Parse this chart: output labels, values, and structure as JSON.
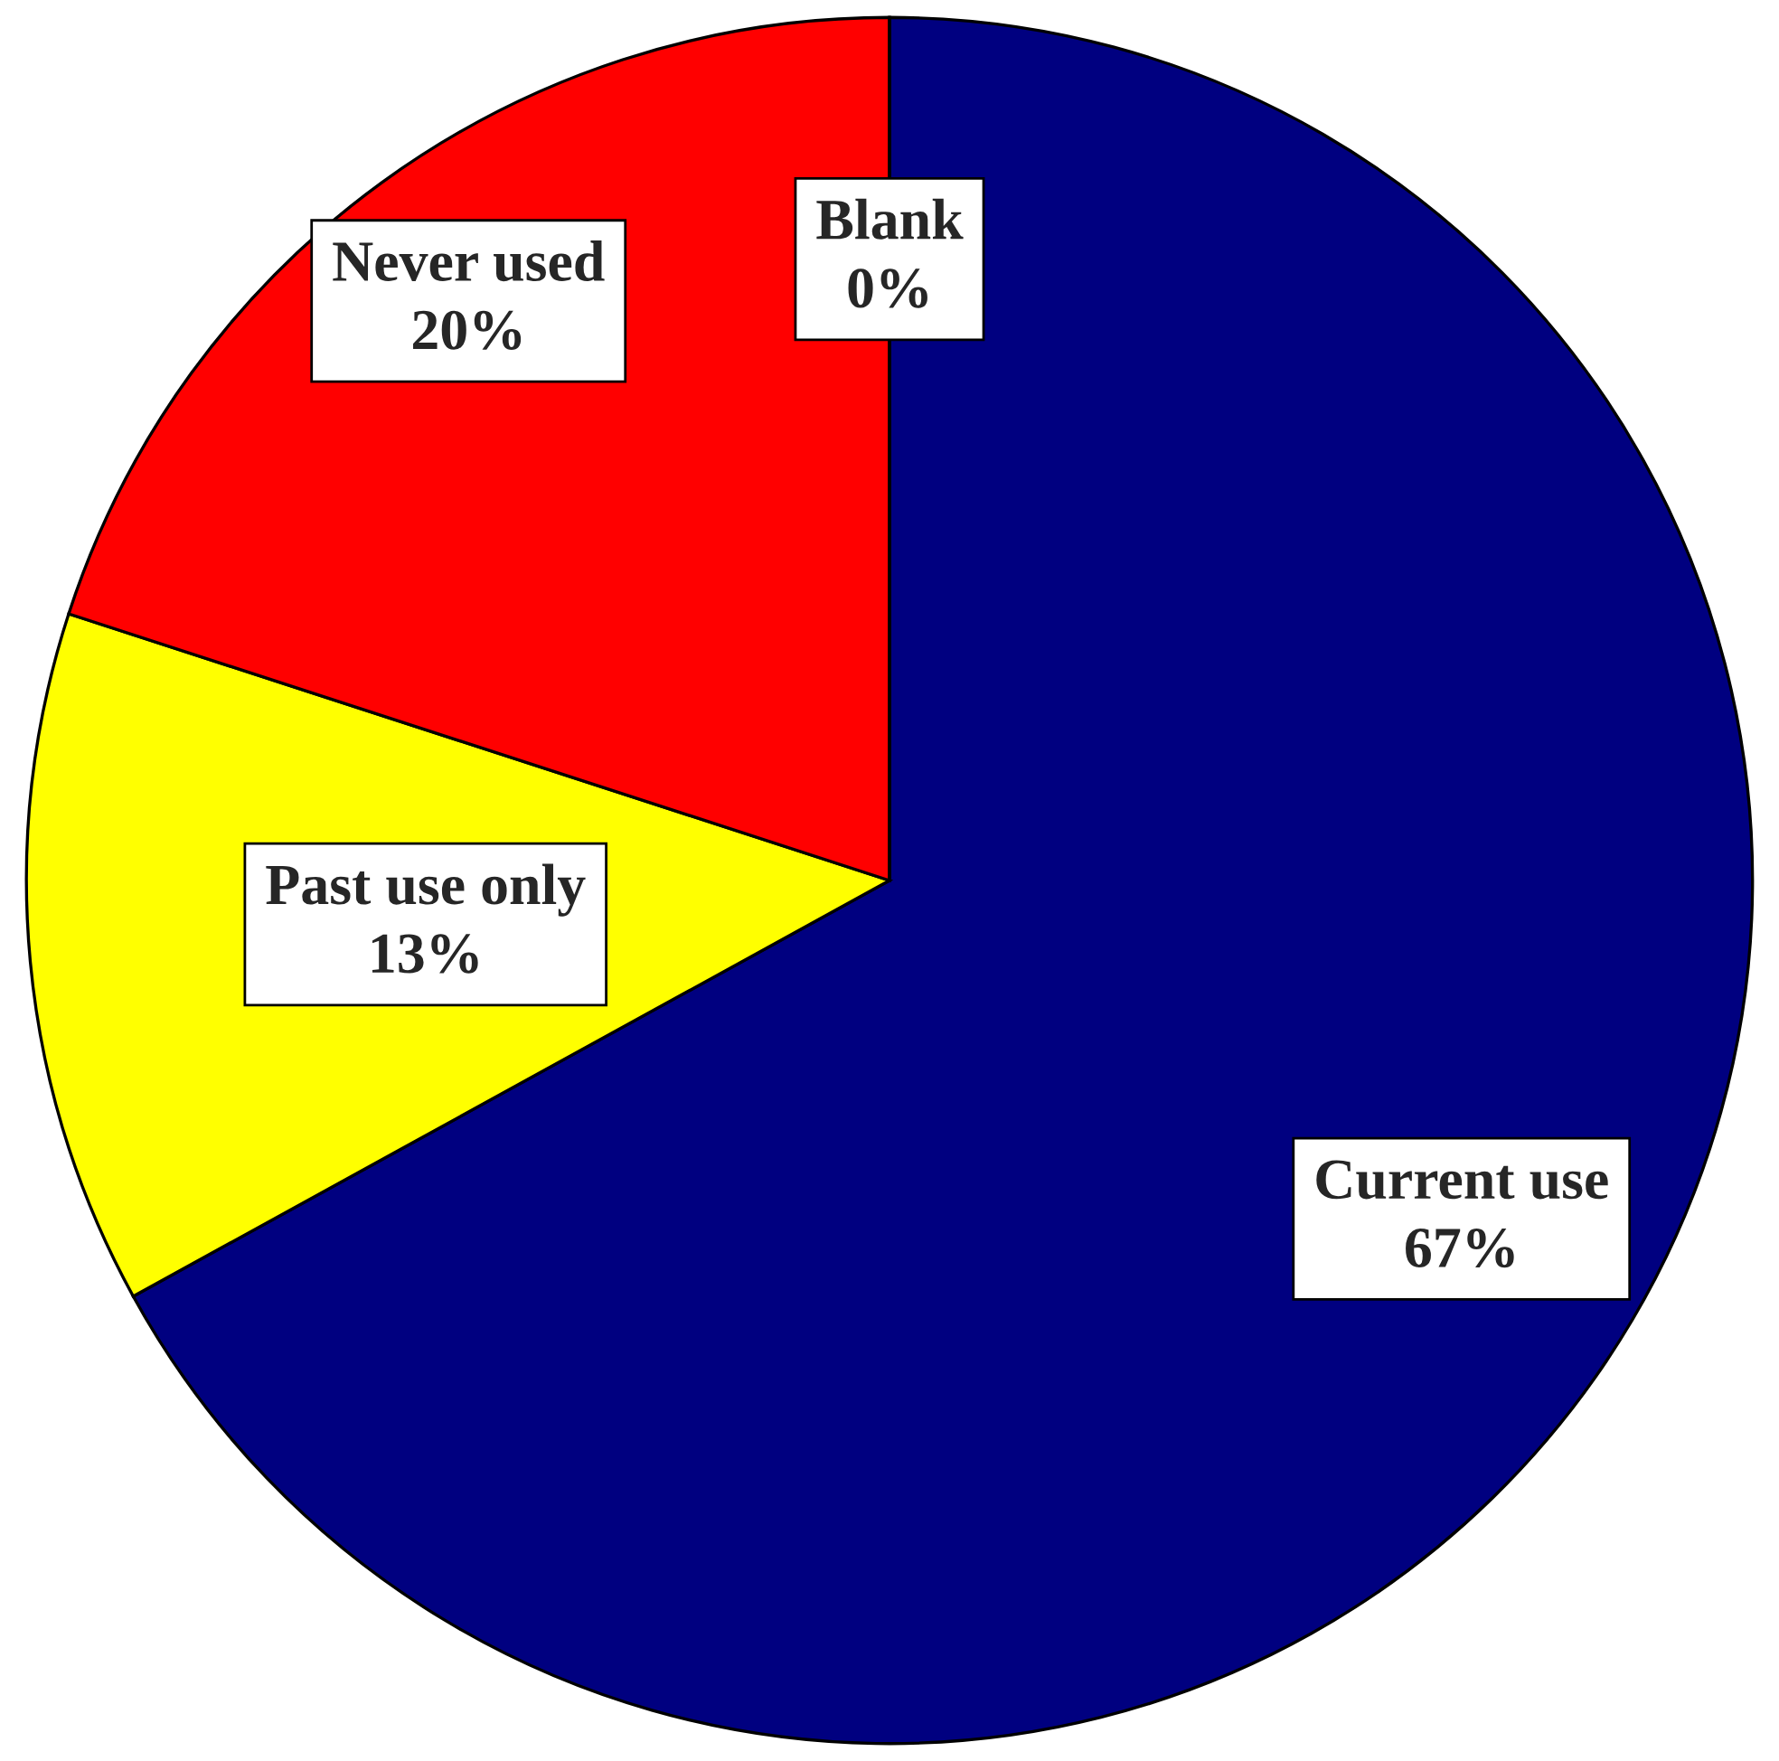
{
  "chart_data": {
    "type": "pie",
    "categories": [
      "Current use",
      "Past use only",
      "Never used",
      "Blank"
    ],
    "values": [
      67,
      13,
      20,
      0
    ],
    "colors": [
      "#000080",
      "#ffff00",
      "#ff0000",
      "#cc8800"
    ],
    "value_labels": [
      "67%",
      "13%",
      "20%",
      "0%"
    ]
  }
}
